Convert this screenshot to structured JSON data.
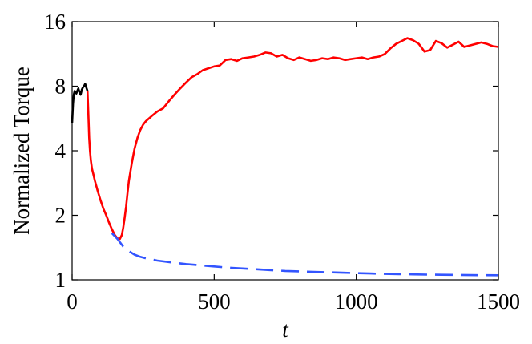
{
  "chart_data": {
    "type": "line",
    "xlabel": "t",
    "ylabel": "Normalized Torque",
    "xlim": [
      0,
      1500
    ],
    "ylim": [
      1,
      16
    ],
    "yscale": "log2",
    "x_ticks": [
      0,
      500,
      1000,
      1500
    ],
    "x_tick_labels": [
      "0",
      "500",
      "1000",
      "1500"
    ],
    "y_ticks": [
      1,
      2,
      4,
      8,
      16
    ],
    "y_tick_labels": [
      "1",
      "2",
      "4",
      "8",
      "16"
    ],
    "grid": false,
    "legend": "none",
    "series": [
      {
        "color": "#000000",
        "style": "solid",
        "x": [
          0,
          3,
          6,
          9,
          12,
          15,
          18,
          22,
          26,
          30,
          34,
          38,
          42,
          46,
          50,
          54
        ],
        "y": [
          5.4,
          6.6,
          7.3,
          7.6,
          7.5,
          7.4,
          7.6,
          7.8,
          7.5,
          7.3,
          7.7,
          7.9,
          8.0,
          8.2,
          7.9,
          7.6
        ]
      },
      {
        "color": "#ff0000",
        "style": "solid",
        "x": [
          54,
          56,
          58,
          60,
          63,
          66,
          70,
          75,
          80,
          90,
          100,
          110,
          120,
          130,
          140,
          150,
          160,
          168,
          175,
          180,
          185,
          190,
          195,
          200,
          210,
          220,
          230,
          240,
          250,
          260,
          280,
          300,
          320,
          340,
          360,
          380,
          400,
          420,
          440,
          460,
          480,
          500,
          520,
          540,
          560,
          580,
          600,
          620,
          640,
          660,
          680,
          700,
          720,
          740,
          760,
          780,
          800,
          820,
          840,
          860,
          880,
          900,
          920,
          940,
          960,
          980,
          1000,
          1020,
          1040,
          1060,
          1080,
          1100,
          1120,
          1140,
          1160,
          1180,
          1200,
          1220,
          1240,
          1260,
          1280,
          1300,
          1320,
          1340,
          1360,
          1380,
          1400,
          1420,
          1440,
          1460,
          1480,
          1500
        ],
        "y": [
          7.6,
          6.5,
          5.5,
          4.6,
          4.0,
          3.6,
          3.3,
          3.1,
          2.9,
          2.6,
          2.35,
          2.15,
          2.0,
          1.85,
          1.72,
          1.62,
          1.56,
          1.55,
          1.62,
          1.75,
          1.95,
          2.2,
          2.55,
          2.9,
          3.5,
          4.1,
          4.6,
          5.0,
          5.3,
          5.5,
          5.8,
          6.1,
          6.3,
          6.8,
          7.3,
          7.8,
          8.3,
          8.8,
          9.1,
          9.5,
          9.7,
          9.9,
          10.0,
          10.6,
          10.7,
          10.5,
          10.8,
          10.9,
          11.0,
          11.2,
          11.5,
          11.4,
          11.0,
          11.2,
          10.8,
          10.6,
          10.9,
          10.7,
          10.5,
          10.6,
          10.8,
          10.7,
          10.9,
          10.8,
          10.6,
          10.7,
          10.8,
          10.9,
          10.7,
          10.9,
          11.0,
          11.3,
          12.0,
          12.6,
          13.0,
          13.4,
          13.1,
          12.6,
          11.6,
          11.8,
          13.0,
          12.7,
          12.1,
          12.5,
          12.9,
          12.2,
          12.4,
          12.6,
          12.8,
          12.6,
          12.3,
          12.2
        ]
      },
      {
        "color": "#3355ff",
        "style": "dashed",
        "x": [
          140,
          160,
          180,
          200,
          220,
          240,
          260,
          280,
          300,
          350,
          400,
          450,
          500,
          550,
          600,
          650,
          700,
          750,
          800,
          850,
          900,
          950,
          1000,
          1050,
          1100,
          1150,
          1200,
          1250,
          1300,
          1350,
          1400,
          1450,
          1500
        ],
        "y": [
          1.65,
          1.55,
          1.43,
          1.36,
          1.31,
          1.28,
          1.26,
          1.245,
          1.23,
          1.205,
          1.185,
          1.17,
          1.155,
          1.14,
          1.13,
          1.12,
          1.11,
          1.1,
          1.095,
          1.09,
          1.085,
          1.08,
          1.075,
          1.07,
          1.066,
          1.063,
          1.06,
          1.058,
          1.056,
          1.054,
          1.052,
          1.051,
          1.05
        ]
      }
    ]
  }
}
